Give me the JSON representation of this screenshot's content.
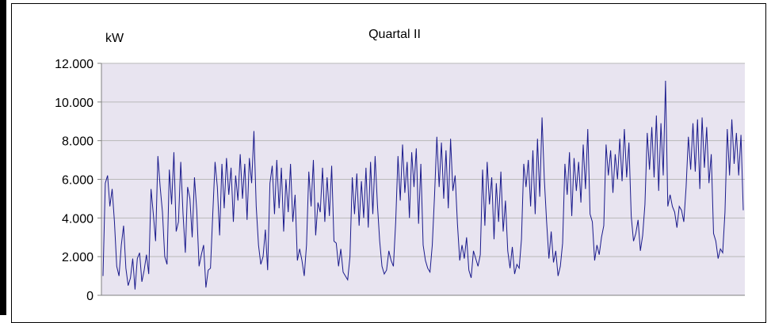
{
  "chart_data": {
    "type": "line",
    "title": "Quartal II",
    "ylabel": "kW",
    "xlabel": "",
    "ylim": [
      0,
      12000
    ],
    "yticks": [
      0,
      2000,
      4000,
      6000,
      8000,
      10000,
      12000
    ],
    "ytick_labels": [
      "0",
      "2.000",
      "4.000",
      "6.000",
      "8.000",
      "10.000",
      "12.000"
    ],
    "grid": true,
    "legend": "none",
    "colors": {
      "line": "#1a1a8c",
      "plot_bg": "#e8e4f0",
      "grid": "#b8b8b8"
    },
    "series": [
      {
        "values": [
          1000,
          5800,
          6200,
          4600,
          5500,
          3800,
          1500,
          1000,
          2600,
          3600,
          1400,
          500,
          900,
          1900,
          300,
          1900,
          2200,
          700,
          1300,
          2100,
          1100,
          5500,
          4200,
          2800,
          7200,
          5600,
          4300,
          2000,
          1600,
          6500,
          4700,
          7400,
          3300,
          3800,
          6900,
          4200,
          2200,
          5600,
          5000,
          3000,
          6100,
          4400,
          1500,
          2100,
          2600,
          400,
          1300,
          1400,
          4200,
          6900,
          5600,
          3100,
          6800,
          4500,
          7100,
          5200,
          6600,
          3800,
          6200,
          4900,
          7300,
          5000,
          6800,
          3900,
          7100,
          5800,
          8500,
          4600,
          2600,
          1600,
          2000,
          3400,
          1300,
          5800,
          6700,
          4200,
          7000,
          4500,
          6600,
          3300,
          6000,
          4300,
          6800,
          3800,
          5200,
          1800,
          2400,
          1800,
          1000,
          2600,
          6400,
          4600,
          7000,
          3100,
          4800,
          4300,
          6600,
          3800,
          6100,
          4100,
          6700,
          2800,
          2700,
          1500,
          2400,
          1200,
          1000,
          800,
          2000,
          6100,
          4200,
          6300,
          3600,
          5900,
          4000,
          6600,
          3500,
          6900,
          4200,
          7200,
          4700,
          2800,
          1500,
          1100,
          1300,
          2300,
          1800,
          1500,
          3800,
          7200,
          4900,
          7800,
          5300,
          6900,
          4000,
          7400,
          5600,
          7600,
          3700,
          6800,
          2600,
          1800,
          1400,
          1200,
          2600,
          5200,
          8200,
          5600,
          7900,
          5000,
          7500,
          4500,
          8100,
          5400,
          6200,
          3700,
          1800,
          2600,
          1900,
          3000,
          1300,
          900,
          2300,
          1900,
          1500,
          2100,
          6500,
          3600,
          6900,
          4700,
          6100,
          2900,
          5800,
          3800,
          6400,
          3300,
          4900,
          2300,
          1400,
          2500,
          1100,
          1600,
          1400,
          2900,
          6800,
          5600,
          7000,
          4600,
          7500,
          4200,
          8100,
          5100,
          9200,
          6000,
          3800,
          1900,
          3300,
          1700,
          2300,
          1000,
          1500,
          2700,
          6800,
          5200,
          7400,
          4100,
          7100,
          5400,
          6900,
          4800,
          7800,
          5500,
          8600,
          4200,
          3800,
          1800,
          2600,
          2100,
          3000,
          3600,
          7800,
          6200,
          7500,
          5300,
          7300,
          6000,
          8100,
          5900,
          8600,
          6100,
          7900,
          4100,
          2800,
          3200,
          3900,
          2300,
          3100,
          4700,
          8400,
          6500,
          8700,
          6100,
          9300,
          5400,
          8900,
          6200,
          11100,
          4600,
          5200,
          4600,
          4300,
          3500,
          4600,
          4400,
          3800,
          5600,
          8200,
          6500,
          8900,
          6400,
          9100,
          5500,
          9200,
          6600,
          8700,
          5800,
          7300,
          3200,
          2800,
          1900,
          2400,
          2200,
          4300,
          8600,
          6200,
          9100,
          6800,
          8400,
          6200,
          8300,
          4400
        ]
      }
    ]
  }
}
